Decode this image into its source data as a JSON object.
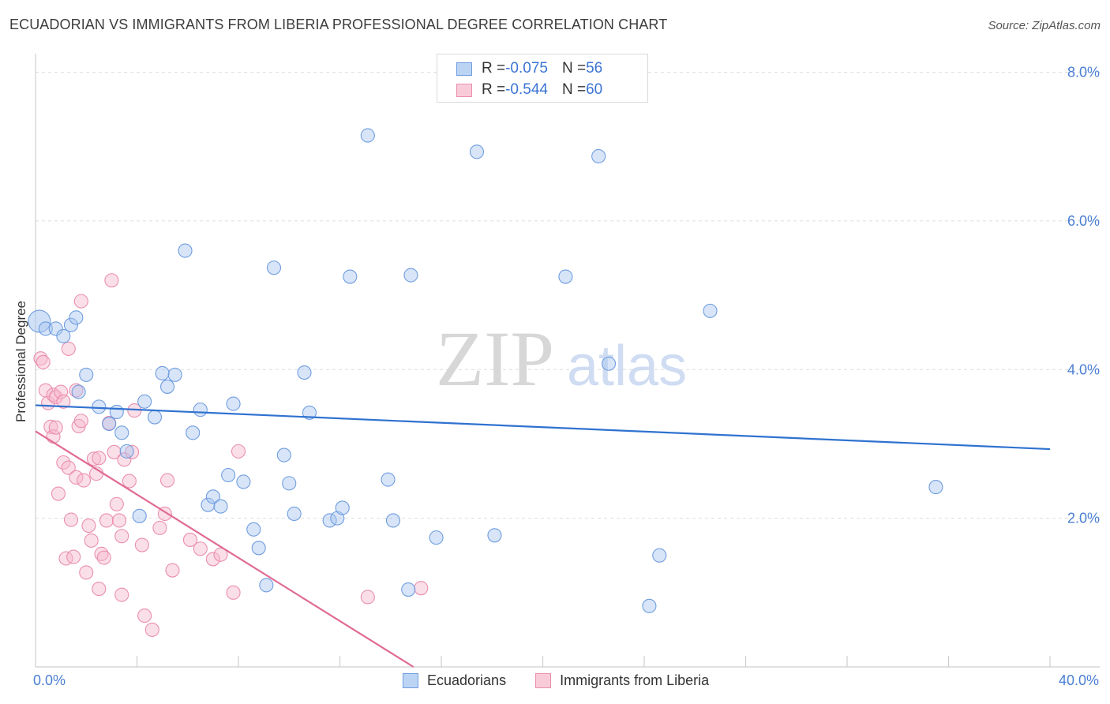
{
  "header": {
    "title": "ECUADORIAN VS IMMIGRANTS FROM LIBERIA PROFESSIONAL DEGREE CORRELATION CHART",
    "source": "Source: ZipAtlas.com"
  },
  "watermark": {
    "zip": "ZIP",
    "atlas": "atlas"
  },
  "legend": {
    "rows": [
      {
        "r_label": "R = ",
        "r_value": "-0.075",
        "n_label": "N = ",
        "n_value": "56"
      },
      {
        "r_label": "R = ",
        "r_value": "-0.544",
        "n_label": "N = ",
        "n_value": "60"
      }
    ]
  },
  "bottom_legend": {
    "series1": "Ecuadorians",
    "series2": "Immigrants from Liberia"
  },
  "colors": {
    "blue_fill": "#a9c6f0",
    "blue_stroke": "#6f9de0",
    "blue_line": "#2f72d0",
    "pink_fill": "#f6b8cc",
    "pink_stroke": "#ea8fae",
    "pink_line": "#e06b94",
    "axis_text": "#4a7fd4",
    "grid": "#dedede"
  },
  "chart_data": {
    "type": "scatter",
    "title": "ECUADORIAN VS IMMIGRANTS FROM LIBERIA PROFESSIONAL DEGREE CORRELATION CHART",
    "xlabel": "",
    "ylabel": "Professional Degree",
    "xlim": [
      0,
      40
    ],
    "ylim": [
      0,
      8.25
    ],
    "x_tick_labels": [
      "0.0%",
      "40.0%"
    ],
    "y_ticks": [
      2,
      4,
      6,
      8
    ],
    "y_tick_labels": [
      "2.0%",
      "4.0%",
      "6.0%",
      "8.0%"
    ],
    "series": [
      {
        "name": "Ecuadorians",
        "R": -0.075,
        "N": 56,
        "trend": {
          "x": [
            0,
            40
          ],
          "y": [
            3.52,
            2.93
          ]
        },
        "points": [
          [
            0.15,
            4.65
          ],
          [
            0.4,
            4.55
          ],
          [
            0.8,
            4.55
          ],
          [
            1.1,
            4.45
          ],
          [
            1.4,
            4.6
          ],
          [
            1.6,
            4.7
          ],
          [
            1.7,
            3.7
          ],
          [
            2.0,
            3.93
          ],
          [
            2.5,
            3.5
          ],
          [
            2.9,
            3.27
          ],
          [
            3.2,
            3.43
          ],
          [
            3.4,
            3.15
          ],
          [
            3.6,
            2.9
          ],
          [
            4.1,
            2.03
          ],
          [
            4.3,
            3.57
          ],
          [
            4.7,
            3.36
          ],
          [
            5.0,
            3.95
          ],
          [
            5.2,
            3.77
          ],
          [
            5.5,
            3.93
          ],
          [
            5.9,
            5.6
          ],
          [
            6.2,
            3.15
          ],
          [
            6.5,
            3.46
          ],
          [
            6.8,
            2.18
          ],
          [
            7.0,
            2.29
          ],
          [
            7.3,
            2.16
          ],
          [
            7.6,
            2.58
          ],
          [
            7.8,
            3.54
          ],
          [
            8.2,
            2.49
          ],
          [
            8.6,
            1.85
          ],
          [
            8.8,
            1.6
          ],
          [
            9.1,
            1.1
          ],
          [
            9.4,
            5.37
          ],
          [
            9.8,
            2.85
          ],
          [
            10.0,
            2.47
          ],
          [
            10.2,
            2.06
          ],
          [
            10.6,
            3.96
          ],
          [
            10.8,
            3.42
          ],
          [
            11.6,
            1.97
          ],
          [
            11.9,
            2.0
          ],
          [
            12.1,
            2.14
          ],
          [
            12.4,
            5.25
          ],
          [
            13.1,
            7.15
          ],
          [
            13.9,
            2.52
          ],
          [
            14.1,
            1.97
          ],
          [
            14.7,
            1.04
          ],
          [
            14.8,
            5.27
          ],
          [
            15.8,
            1.74
          ],
          [
            17.4,
            6.93
          ],
          [
            18.1,
            1.77
          ],
          [
            20.9,
            5.25
          ],
          [
            22.2,
            6.87
          ],
          [
            22.6,
            4.08
          ],
          [
            24.2,
            0.82
          ],
          [
            24.6,
            1.5
          ],
          [
            26.6,
            4.79
          ],
          [
            35.5,
            2.42
          ]
        ]
      },
      {
        "name": "Immigrants from Liberia",
        "R": -0.544,
        "N": 60,
        "trend": {
          "x": [
            0,
            14.9
          ],
          "y": [
            3.17,
            0
          ]
        },
        "points": [
          [
            0.2,
            4.15
          ],
          [
            0.3,
            4.1
          ],
          [
            0.4,
            3.72
          ],
          [
            0.5,
            3.55
          ],
          [
            0.6,
            3.23
          ],
          [
            0.7,
            3.1
          ],
          [
            0.7,
            3.66
          ],
          [
            0.8,
            3.63
          ],
          [
            0.8,
            3.22
          ],
          [
            0.9,
            2.33
          ],
          [
            1.0,
            3.7
          ],
          [
            1.1,
            3.57
          ],
          [
            1.1,
            2.75
          ],
          [
            1.2,
            1.46
          ],
          [
            1.3,
            2.68
          ],
          [
            1.3,
            4.28
          ],
          [
            1.4,
            1.98
          ],
          [
            1.5,
            1.48
          ],
          [
            1.6,
            3.72
          ],
          [
            1.6,
            2.55
          ],
          [
            1.7,
            3.24
          ],
          [
            1.8,
            3.31
          ],
          [
            1.8,
            4.92
          ],
          [
            1.9,
            2.51
          ],
          [
            2.0,
            1.27
          ],
          [
            2.1,
            1.9
          ],
          [
            2.2,
            1.7
          ],
          [
            2.3,
            2.8
          ],
          [
            2.4,
            2.6
          ],
          [
            2.5,
            1.05
          ],
          [
            2.5,
            2.81
          ],
          [
            2.6,
            1.52
          ],
          [
            2.7,
            1.47
          ],
          [
            2.8,
            1.97
          ],
          [
            2.9,
            3.28
          ],
          [
            3.0,
            5.2
          ],
          [
            3.1,
            2.89
          ],
          [
            3.2,
            2.19
          ],
          [
            3.3,
            1.97
          ],
          [
            3.4,
            1.76
          ],
          [
            3.4,
            0.97
          ],
          [
            3.5,
            2.79
          ],
          [
            3.7,
            2.5
          ],
          [
            3.8,
            2.89
          ],
          [
            3.9,
            3.45
          ],
          [
            4.2,
            1.64
          ],
          [
            4.3,
            0.69
          ],
          [
            4.6,
            0.5
          ],
          [
            4.9,
            1.87
          ],
          [
            5.1,
            2.06
          ],
          [
            5.2,
            2.51
          ],
          [
            5.4,
            1.3
          ],
          [
            6.1,
            1.71
          ],
          [
            6.5,
            1.59
          ],
          [
            7.0,
            1.45
          ],
          [
            7.3,
            1.51
          ],
          [
            7.8,
            1.0
          ],
          [
            8.0,
            2.9
          ],
          [
            13.1,
            0.94
          ],
          [
            15.2,
            1.06
          ]
        ]
      }
    ]
  }
}
